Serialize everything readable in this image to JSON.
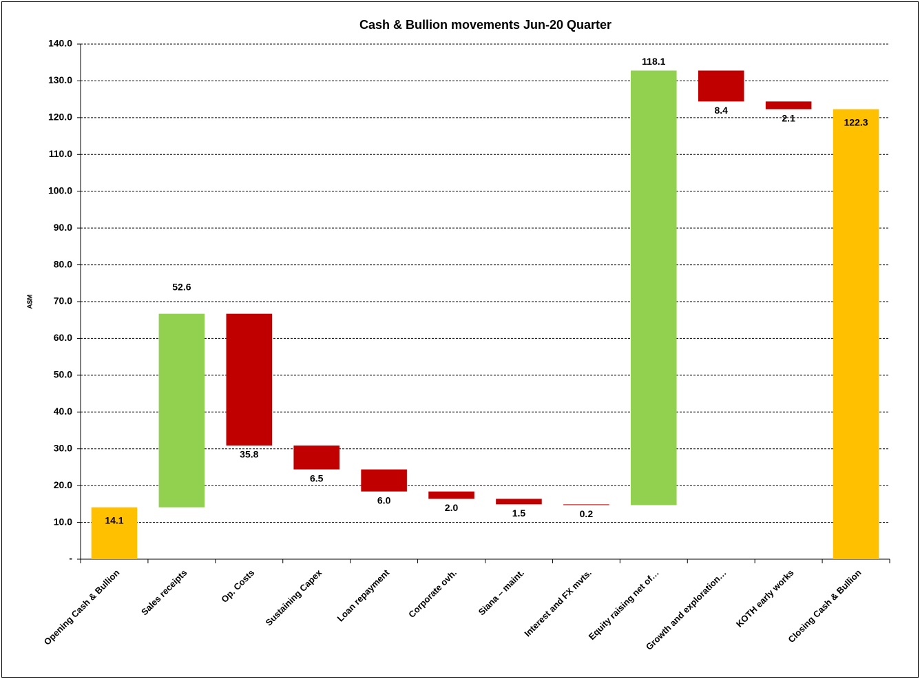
{
  "chart_data": {
    "type": "waterfall",
    "title": "Cash & Bullion movements Jun-20 Quarter",
    "ylabel": "A$M",
    "categories": [
      "Opening Cash & Bullion",
      "Sales receipts",
      "Op. Costs",
      "Sustaining Capex",
      "Loan repayment",
      "Corporate ovh.",
      "Siana – maint.",
      "Interest  and FX mvts.",
      "Equity raising net of…",
      "Growth and exploration…",
      "KOTH early works",
      "Closing Cash & Bullion"
    ],
    "measure": [
      "absolute",
      "relative",
      "relative",
      "relative",
      "relative",
      "relative",
      "relative",
      "relative",
      "relative",
      "relative",
      "relative",
      "absolute"
    ],
    "values": [
      14.1,
      52.6,
      -35.8,
      -6.5,
      -6.0,
      -2.0,
      -1.5,
      -0.2,
      118.1,
      -8.4,
      -2.1,
      122.3
    ],
    "value_labels": [
      "14.1",
      "52.6",
      "35.8",
      "6.5",
      "6.0",
      "2.0",
      "1.5",
      "0.2",
      "118.1",
      "8.4",
      "2.1",
      "122.3"
    ],
    "total_color": "#ffc000",
    "increase_color": "#92d050",
    "decrease_color": "#c00000",
    "ylim": [
      0,
      140
    ],
    "yticks": [
      {
        "value": 0,
        "label": "-"
      },
      {
        "value": 10,
        "label": "10.0"
      },
      {
        "value": 20,
        "label": "20.0"
      },
      {
        "value": 30,
        "label": "30.0"
      },
      {
        "value": 40,
        "label": "40.0"
      },
      {
        "value": 50,
        "label": "50.0"
      },
      {
        "value": 60,
        "label": "60.0"
      },
      {
        "value": 70,
        "label": "70.0"
      },
      {
        "value": 80,
        "label": "80.0"
      },
      {
        "value": 90,
        "label": "90.0"
      },
      {
        "value": 100,
        "label": "100.0"
      },
      {
        "value": 110,
        "label": "110.0"
      },
      {
        "value": 120,
        "label": "120.0"
      },
      {
        "value": 130,
        "label": "130.0"
      },
      {
        "value": 140,
        "label": "140.0"
      }
    ],
    "grid": true
  }
}
